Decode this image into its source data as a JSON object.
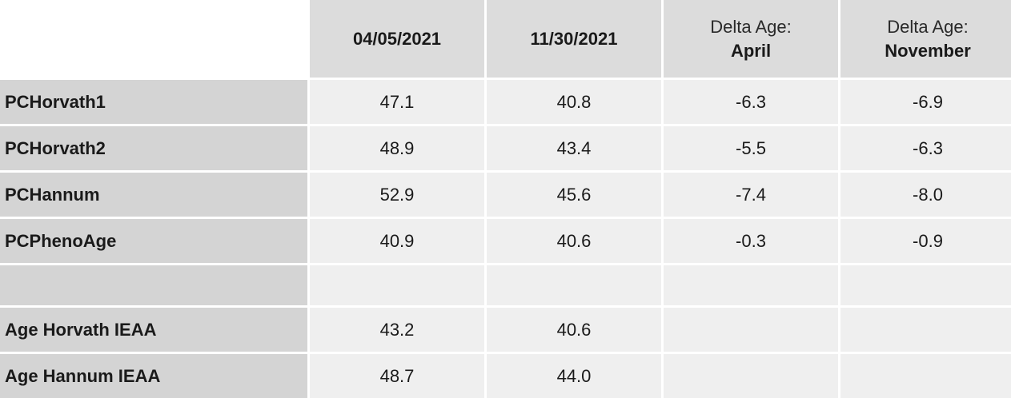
{
  "table": {
    "columns": [
      {
        "line1": "04/05/2021",
        "line2": ""
      },
      {
        "line1": "11/30/2021",
        "line2": ""
      },
      {
        "line1": "Delta Age:",
        "line2": "April"
      },
      {
        "line1": "Delta Age:",
        "line2": "November"
      }
    ],
    "rows": [
      {
        "label": "PCHorvath1",
        "cells": [
          "47.1",
          "40.8",
          "-6.3",
          "-6.9"
        ]
      },
      {
        "label": "PCHorvath2",
        "cells": [
          "48.9",
          "43.4",
          "-5.5",
          "-6.3"
        ]
      },
      {
        "label": "PCHannum",
        "cells": [
          "52.9",
          "45.6",
          "-7.4",
          "-8.0"
        ]
      },
      {
        "label": "PCPhenoAge",
        "cells": [
          "40.9",
          "40.6",
          "-0.3",
          "-0.9"
        ]
      },
      {
        "label": "",
        "cells": [
          "",
          "",
          "",
          ""
        ]
      },
      {
        "label": "Age Horvath IEAA",
        "cells": [
          "43.2",
          "40.6",
          "",
          ""
        ]
      },
      {
        "label": "Age Hannum IEAA",
        "cells": [
          "48.7",
          "44.0",
          "",
          ""
        ]
      }
    ]
  }
}
